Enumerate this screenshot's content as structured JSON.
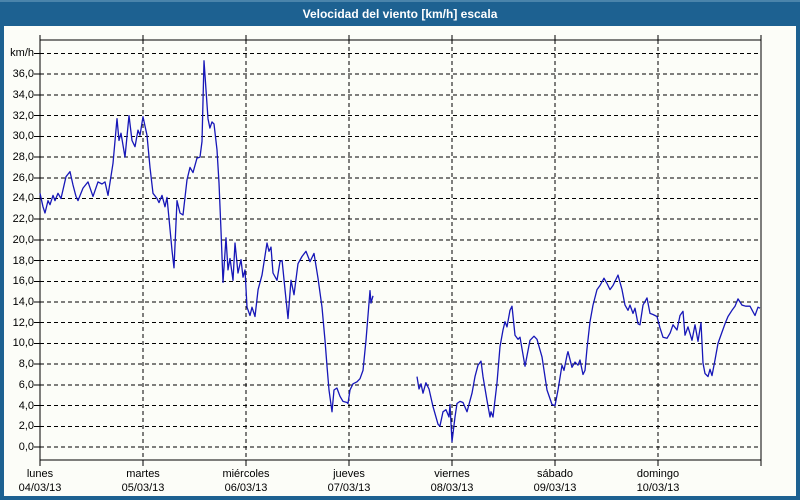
{
  "window": {
    "title": "Velocidad del viento [km/h] escala"
  },
  "colors": {
    "frame_blue": "#1d6191",
    "frame_highlight": "#4a84ab",
    "title_text": "#ffffff",
    "plot_background": "#fcfdf8",
    "grid_color": "#000000",
    "line_color": "#1717b8"
  },
  "chart_data": {
    "type": "line",
    "title": "Velocidad del viento [km/h] escala",
    "ylabel": "km/h",
    "y_unit_label": "km/h",
    "ylim": [
      0,
      38
    ],
    "ytick_step": 2,
    "y_tick_labels": [
      "0,0",
      "2,0",
      "4,0",
      "6,0",
      "8,0",
      "10,0",
      "12,0",
      "14,0",
      "16,0",
      "18,0",
      "20,0",
      "22,0",
      "24,0",
      "26,0",
      "28,0",
      "30,0",
      "32,0",
      "34,0",
      "36,0"
    ],
    "grid": "dashed",
    "legend": "none",
    "x_days": [
      {
        "name": "lunes",
        "date": "04/03/13"
      },
      {
        "name": "martes",
        "date": "05/03/13"
      },
      {
        "name": "miércoles",
        "date": "06/03/13"
      },
      {
        "name": "jueves",
        "date": "07/03/13"
      },
      {
        "name": "viernes",
        "date": "08/03/13"
      },
      {
        "name": "sábado",
        "date": "09/03/13"
      },
      {
        "name": "domingo",
        "date": "10/03/13"
      }
    ],
    "x_axis_note": "t is in days from lunes 04/03/13 00:00; gap in data Thursday midday",
    "series": [
      {
        "name": "Velocidad del viento",
        "unit": "km/h",
        "color": "#1717b8",
        "segments": [
          [
            [
              0,
              24.5
            ],
            [
              0.029,
              23.2
            ],
            [
              0.049,
              22.6
            ],
            [
              0.078,
              23.8
            ],
            [
              0.097,
              23.4
            ],
            [
              0.126,
              24.3
            ],
            [
              0.146,
              23.8
            ],
            [
              0.175,
              24.5
            ],
            [
              0.204,
              24.0
            ],
            [
              0.252,
              26.1
            ],
            [
              0.291,
              26.6
            ],
            [
              0.32,
              25.3
            ],
            [
              0.35,
              24.2
            ],
            [
              0.369,
              23.8
            ],
            [
              0.417,
              25.0
            ],
            [
              0.466,
              25.6
            ],
            [
              0.515,
              24.2
            ],
            [
              0.563,
              25.6
            ],
            [
              0.602,
              25.4
            ],
            [
              0.631,
              25.6
            ],
            [
              0.66,
              24.3
            ],
            [
              0.709,
              27.4
            ],
            [
              0.748,
              31.7
            ],
            [
              0.767,
              29.6
            ],
            [
              0.786,
              30.3
            ],
            [
              0.825,
              28.0
            ],
            [
              0.864,
              32.0
            ],
            [
              0.893,
              29.6
            ],
            [
              0.922,
              29.0
            ],
            [
              0.951,
              30.6
            ],
            [
              0.971,
              30.1
            ],
            [
              1.0,
              31.9
            ],
            [
              1.039,
              30.1
            ],
            [
              1.068,
              27.0
            ],
            [
              1.097,
              24.5
            ],
            [
              1.136,
              24.0
            ],
            [
              1.155,
              23.6
            ],
            [
              1.184,
              24.3
            ],
            [
              1.214,
              23.2
            ],
            [
              1.233,
              24.1
            ],
            [
              1.282,
              19.0
            ],
            [
              1.301,
              17.3
            ],
            [
              1.33,
              23.8
            ],
            [
              1.359,
              22.6
            ],
            [
              1.388,
              22.4
            ],
            [
              1.427,
              25.8
            ],
            [
              1.456,
              27.0
            ],
            [
              1.485,
              26.5
            ],
            [
              1.524,
              27.9
            ],
            [
              1.553,
              28.0
            ],
            [
              1.573,
              29.5
            ],
            [
              1.592,
              37.3
            ],
            [
              1.612,
              34.5
            ],
            [
              1.631,
              31.7
            ],
            [
              1.65,
              30.8
            ],
            [
              1.67,
              31.4
            ],
            [
              1.689,
              31.2
            ],
            [
              1.718,
              28.7
            ],
            [
              1.738,
              25.5
            ],
            [
              1.757,
              20.9
            ],
            [
              1.777,
              15.9
            ],
            [
              1.806,
              20.2
            ],
            [
              1.825,
              17.1
            ],
            [
              1.845,
              18.2
            ],
            [
              1.874,
              16.1
            ],
            [
              1.893,
              19.7
            ],
            [
              1.922,
              16.8
            ],
            [
              1.951,
              18.1
            ],
            [
              1.971,
              16.4
            ],
            [
              1.99,
              17.1
            ],
            [
              2.01,
              13.5
            ],
            [
              2.039,
              12.7
            ],
            [
              2.058,
              13.5
            ],
            [
              2.087,
              12.6
            ],
            [
              2.117,
              15.2
            ],
            [
              2.155,
              16.6
            ],
            [
              2.204,
              19.7
            ],
            [
              2.223,
              18.9
            ],
            [
              2.243,
              19.3
            ],
            [
              2.262,
              16.8
            ],
            [
              2.301,
              16.1
            ],
            [
              2.33,
              17.9
            ],
            [
              2.35,
              18.0
            ],
            [
              2.379,
              15.2
            ],
            [
              2.408,
              12.4
            ],
            [
              2.437,
              16.1
            ],
            [
              2.466,
              14.7
            ],
            [
              2.505,
              17.7
            ],
            [
              2.544,
              18.4
            ],
            [
              2.583,
              18.9
            ],
            [
              2.621,
              17.9
            ],
            [
              2.66,
              18.7
            ],
            [
              2.699,
              16.3
            ],
            [
              2.738,
              13.5
            ],
            [
              2.767,
              10.3
            ],
            [
              2.786,
              7.8
            ],
            [
              2.806,
              5.5
            ],
            [
              2.835,
              3.4
            ],
            [
              2.854,
              5.5
            ],
            [
              2.883,
              5.7
            ],
            [
              2.913,
              4.9
            ],
            [
              2.942,
              4.4
            ],
            [
              2.981,
              4.3
            ],
            [
              2.99,
              4.2
            ],
            [
              3.01,
              5.5
            ],
            [
              3.039,
              6.1
            ],
            [
              3.078,
              6.3
            ],
            [
              3.107,
              6.6
            ],
            [
              3.136,
              7.4
            ],
            [
              3.165,
              10.3
            ],
            [
              3.184,
              12.7
            ],
            [
              3.204,
              15.1
            ],
            [
              3.214,
              13.9
            ],
            [
              3.233,
              14.6
            ]
          ],
          [
            [
              3.66,
              6.8
            ],
            [
              3.68,
              5.6
            ],
            [
              3.699,
              6.1
            ],
            [
              3.718,
              5.2
            ],
            [
              3.747,
              6.2
            ],
            [
              3.777,
              5.6
            ],
            [
              3.816,
              3.9
            ],
            [
              3.864,
              2.2
            ],
            [
              3.883,
              2.0
            ],
            [
              3.913,
              3.4
            ],
            [
              3.942,
              3.6
            ],
            [
              3.971,
              2.9
            ],
            [
              3.981,
              4.1
            ],
            [
              4.0,
              0.5
            ],
            [
              4.029,
              2.9
            ],
            [
              4.049,
              4.2
            ],
            [
              4.078,
              4.4
            ],
            [
              4.107,
              4.3
            ],
            [
              4.146,
              3.4
            ],
            [
              4.194,
              5.2
            ],
            [
              4.223,
              6.8
            ],
            [
              4.252,
              7.9
            ],
            [
              4.282,
              8.3
            ],
            [
              4.301,
              6.8
            ],
            [
              4.34,
              4.5
            ],
            [
              4.369,
              2.9
            ],
            [
              4.379,
              3.4
            ],
            [
              4.398,
              2.9
            ],
            [
              4.437,
              6.2
            ],
            [
              4.466,
              9.7
            ],
            [
              4.495,
              11.3
            ],
            [
              4.515,
              12.1
            ],
            [
              4.534,
              11.6
            ],
            [
              4.563,
              13.2
            ],
            [
              4.583,
              13.6
            ],
            [
              4.612,
              10.8
            ],
            [
              4.641,
              10.4
            ],
            [
              4.66,
              10.6
            ],
            [
              4.709,
              7.8
            ],
            [
              4.757,
              10.3
            ],
            [
              4.796,
              10.7
            ],
            [
              4.825,
              10.4
            ],
            [
              4.874,
              8.7
            ],
            [
              4.922,
              5.5
            ],
            [
              4.971,
              4.1
            ],
            [
              5.0,
              4.0
            ],
            [
              5.029,
              5.5
            ],
            [
              5.068,
              7.9
            ],
            [
              5.087,
              7.4
            ],
            [
              5.117,
              8.9
            ],
            [
              5.126,
              9.2
            ],
            [
              5.165,
              7.7
            ],
            [
              5.194,
              8.2
            ],
            [
              5.223,
              7.9
            ],
            [
              5.243,
              8.4
            ],
            [
              5.272,
              7.0
            ],
            [
              5.291,
              7.4
            ],
            [
              5.311,
              9.5
            ],
            [
              5.34,
              12.1
            ],
            [
              5.369,
              13.7
            ],
            [
              5.408,
              15.2
            ],
            [
              5.437,
              15.6
            ],
            [
              5.476,
              16.3
            ],
            [
              5.505,
              15.8
            ],
            [
              5.534,
              15.2
            ],
            [
              5.563,
              15.6
            ],
            [
              5.612,
              16.6
            ],
            [
              5.65,
              15.2
            ],
            [
              5.68,
              13.7
            ],
            [
              5.709,
              13.2
            ],
            [
              5.728,
              13.7
            ],
            [
              5.757,
              12.9
            ],
            [
              5.777,
              13.4
            ],
            [
              5.806,
              11.9
            ],
            [
              5.825,
              11.8
            ],
            [
              5.854,
              13.7
            ],
            [
              5.893,
              14.4
            ],
            [
              5.922,
              12.9
            ],
            [
              5.951,
              12.8
            ],
            [
              5.99,
              12.6
            ],
            [
              6.019,
              11.5
            ],
            [
              6.049,
              10.6
            ],
            [
              6.087,
              10.5
            ],
            [
              6.117,
              11.0
            ],
            [
              6.146,
              11.8
            ],
            [
              6.184,
              11.3
            ],
            [
              6.214,
              12.7
            ],
            [
              6.243,
              13.1
            ],
            [
              6.262,
              10.8
            ],
            [
              6.291,
              11.6
            ],
            [
              6.33,
              10.3
            ],
            [
              6.359,
              11.8
            ],
            [
              6.388,
              10.2
            ],
            [
              6.417,
              12.0
            ],
            [
              6.437,
              8.1
            ],
            [
              6.456,
              7.1
            ],
            [
              6.485,
              6.8
            ],
            [
              6.505,
              7.5
            ],
            [
              6.524,
              6.9
            ],
            [
              6.553,
              8.4
            ],
            [
              6.583,
              10.0
            ],
            [
              6.621,
              11.1
            ],
            [
              6.65,
              11.9
            ],
            [
              6.68,
              12.6
            ],
            [
              6.718,
              13.2
            ],
            [
              6.748,
              13.6
            ],
            [
              6.777,
              14.3
            ],
            [
              6.816,
              13.7
            ],
            [
              6.854,
              13.6
            ],
            [
              6.893,
              13.6
            ],
            [
              6.942,
              12.7
            ],
            [
              6.971,
              13.5
            ],
            [
              6.99,
              13.4
            ]
          ]
        ]
      }
    ]
  }
}
